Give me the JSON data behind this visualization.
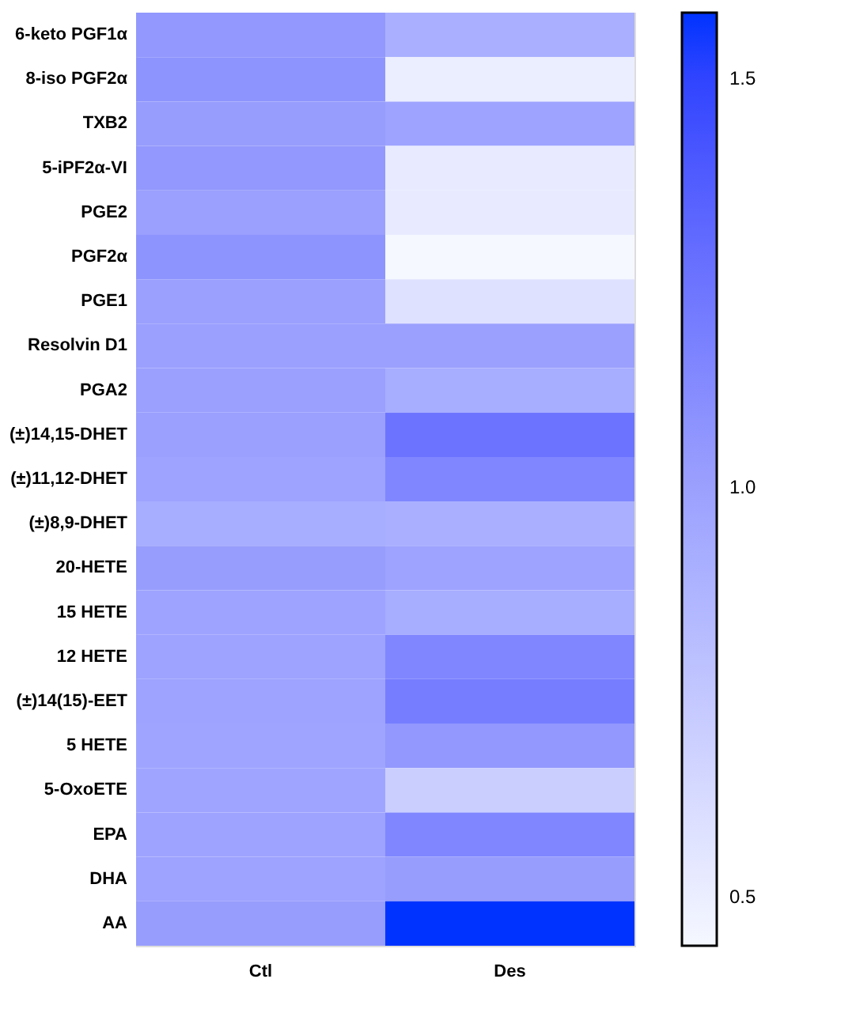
{
  "chart_data": {
    "type": "heatmap",
    "categories": [
      "Ctl",
      "Des"
    ],
    "y_categories": [
      "6-keto PGF1α",
      "8-iso PGF2α",
      "TXB2",
      "5-iPF2α-VI",
      "PGE2",
      "PGF2α",
      "PGE1",
      "Resolvin D1",
      "PGA2",
      "(±)14,15-DHET",
      "(±)11,12-DHET",
      "(±)8,9-DHET",
      "20-HETE",
      "15 HETE",
      "12 HETE",
      "(±)14(15)-EET",
      "5 HETE",
      "5-OxoETE",
      "EPA",
      "DHA",
      "AA"
    ],
    "cells": [
      [
        1.05,
        0.9
      ],
      [
        1.07,
        0.5
      ],
      [
        1.02,
        0.98
      ],
      [
        1.05,
        0.52
      ],
      [
        1.0,
        0.52
      ],
      [
        1.07,
        0.44
      ],
      [
        1.0,
        0.58
      ],
      [
        1.0,
        1.0
      ],
      [
        1.0,
        0.92
      ],
      [
        1.0,
        1.25
      ],
      [
        0.98,
        1.15
      ],
      [
        0.92,
        0.9
      ],
      [
        1.02,
        0.98
      ],
      [
        0.98,
        0.92
      ],
      [
        0.98,
        1.15
      ],
      [
        0.98,
        1.2
      ],
      [
        0.97,
        1.05
      ],
      [
        0.97,
        0.7
      ],
      [
        0.98,
        1.15
      ],
      [
        0.98,
        1.02
      ],
      [
        1.02,
        1.58
      ]
    ],
    "clim": [
      0.44,
      1.58
    ],
    "cticks": [
      0.5,
      {
        "value": 1,
        "label": "1.0"
      },
      1.5
    ],
    "colors": [
      "#ffffff",
      "#999ffc",
      "#0033ff"
    ]
  }
}
